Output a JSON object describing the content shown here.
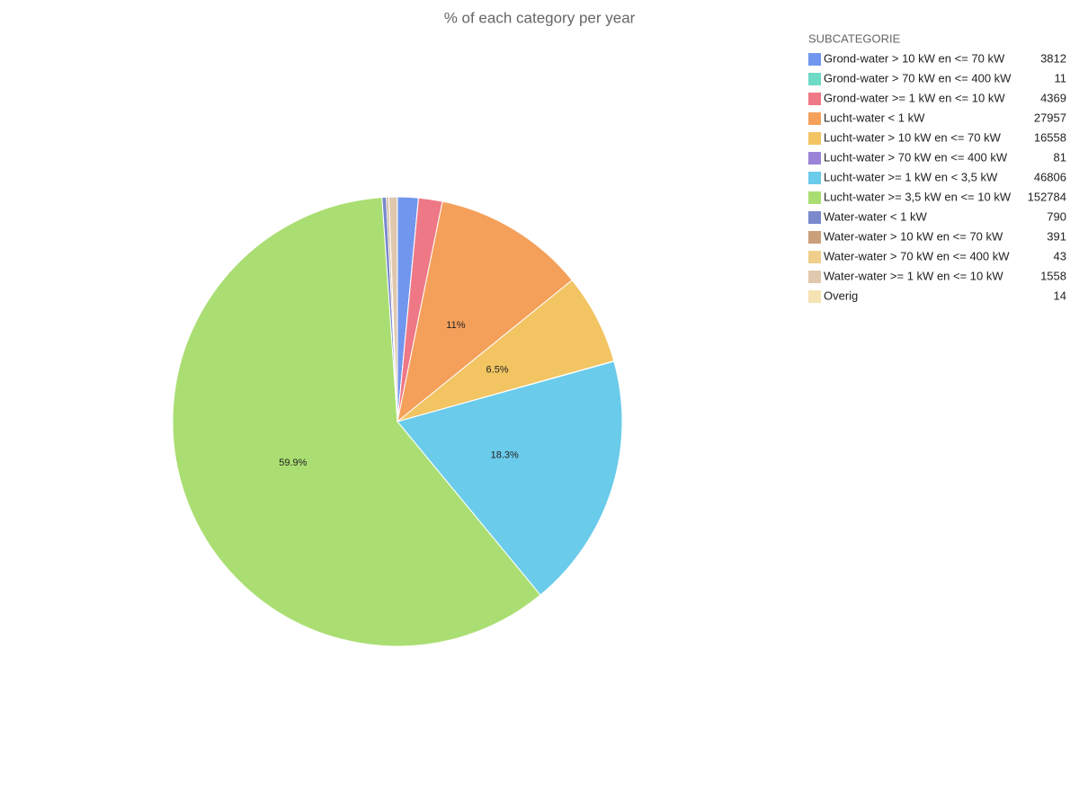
{
  "chart_data": {
    "type": "pie",
    "title": "% of each category per year",
    "legend_title": "SUBCATEGORIE",
    "categories": [
      "Grond-water > 10 kW en <= 70 kW",
      "Grond-water > 70 kW en <= 400 kW",
      "Grond-water >= 1 kW en <= 10 kW",
      "Lucht-water < 1 kW",
      "Lucht-water > 10 kW en <= 70 kW",
      "Lucht-water > 70 kW en <= 400 kW",
      "Lucht-water >= 1 kW en < 3,5 kW",
      "Lucht-water >= 3,5 kW en <= 10 kW",
      "Water-water < 1 kW",
      "Water-water > 10 kW en <= 70 kW",
      "Water-water > 70 kW en <= 400 kW",
      "Water-water >= 1 kW en <= 10 kW",
      "Overig"
    ],
    "values": [
      3812,
      11,
      4369,
      27957,
      16558,
      81,
      46806,
      152784,
      790,
      391,
      43,
      1558,
      14
    ],
    "value_labels": [
      null,
      null,
      null,
      "11%",
      "6.5%",
      null,
      "18.3%",
      "59.9%",
      null,
      null,
      null,
      null,
      null
    ],
    "colors": [
      "#7196ee",
      "#6ddbc5",
      "#ef7886",
      "#f4a05a",
      "#f2c462",
      "#9a83d8",
      "#6acbea",
      "#aade72",
      "#7a88cc",
      "#c9a07a",
      "#efcf8b",
      "#e0c8ae",
      "#f5e3b3"
    ],
    "legend_position": "top-right"
  }
}
